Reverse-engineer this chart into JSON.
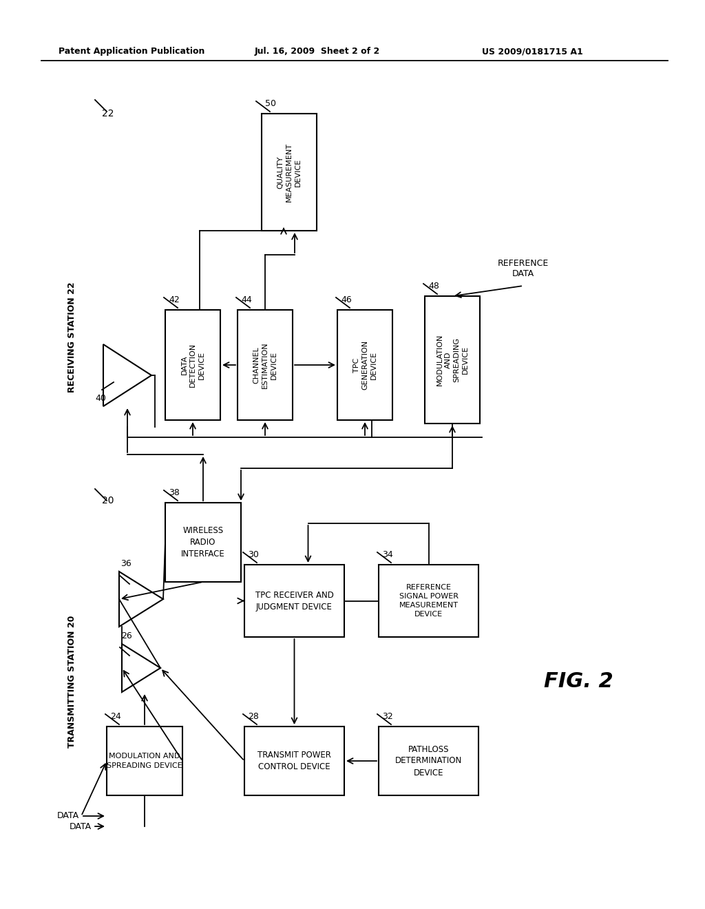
{
  "header_left": "Patent Application Publication",
  "header_mid": "Jul. 16, 2009  Sheet 2 of 2",
  "header_right": "US 2009/0181715 A1",
  "fig_label": "FIG. 2",
  "bg_color": "#ffffff"
}
